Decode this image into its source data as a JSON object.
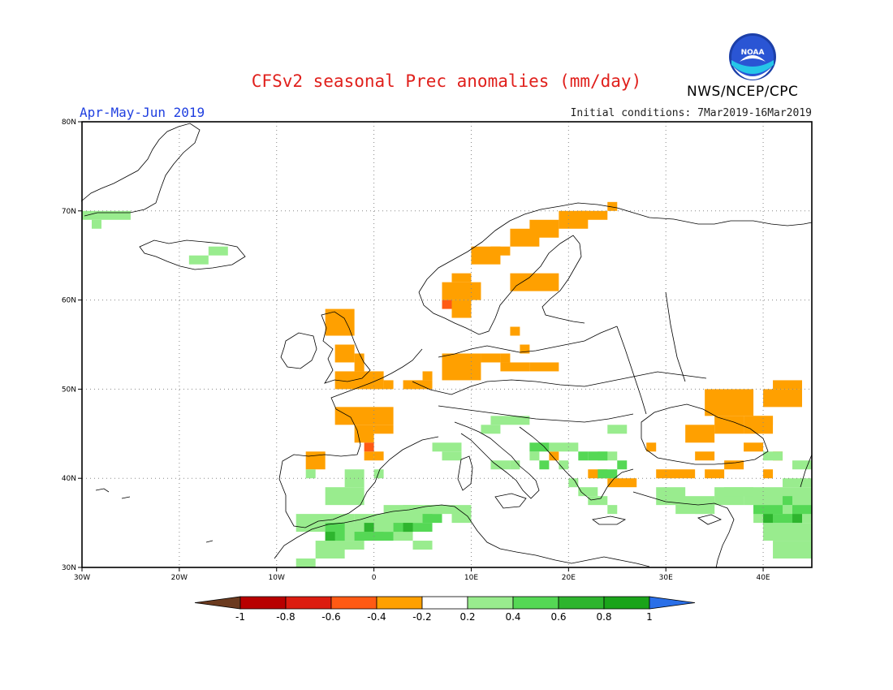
{
  "header": {
    "title": "CFSv2 seasonal Prec anomalies (mm/day)",
    "period": "Apr-May-Jun 2019",
    "initial_conditions": "Initial conditions: 7Mar2019-16Mar2019",
    "agency": "NWS/NCEP/CPC",
    "logo_text": "NOAA"
  },
  "map": {
    "lon_range": [
      -30,
      45
    ],
    "lat_range": [
      30,
      80
    ],
    "lon_ticks": [
      {
        "value": -30,
        "label": "30W"
      },
      {
        "value": -20,
        "label": "20W"
      },
      {
        "value": -10,
        "label": "10W"
      },
      {
        "value": 0,
        "label": "0"
      },
      {
        "value": 10,
        "label": "10E"
      },
      {
        "value": 20,
        "label": "20E"
      },
      {
        "value": 30,
        "label": "30E"
      },
      {
        "value": 40,
        "label": "40E"
      }
    ],
    "lat_ticks": [
      {
        "value": 30,
        "label": "30N"
      },
      {
        "value": 40,
        "label": "40N"
      },
      {
        "value": 50,
        "label": "50N"
      },
      {
        "value": 60,
        "label": "60N"
      },
      {
        "value": 70,
        "label": "70N"
      },
      {
        "value": 80,
        "label": "80N"
      }
    ],
    "grid": "dotted"
  },
  "colorbar": {
    "levels": [
      "-1",
      "-0.8",
      "-0.6",
      "-0.4",
      "-0.2",
      "0.2",
      "0.4",
      "0.6",
      "0.8",
      "1"
    ],
    "colors": [
      "#6b3a1f",
      "#b80000",
      "#dc1c10",
      "#ff5a14",
      "#ffa000",
      "#ffffff",
      "#99ec8e",
      "#55d855",
      "#2eb52e",
      "#1aa41a",
      "#2a6fe8"
    ]
  }
}
